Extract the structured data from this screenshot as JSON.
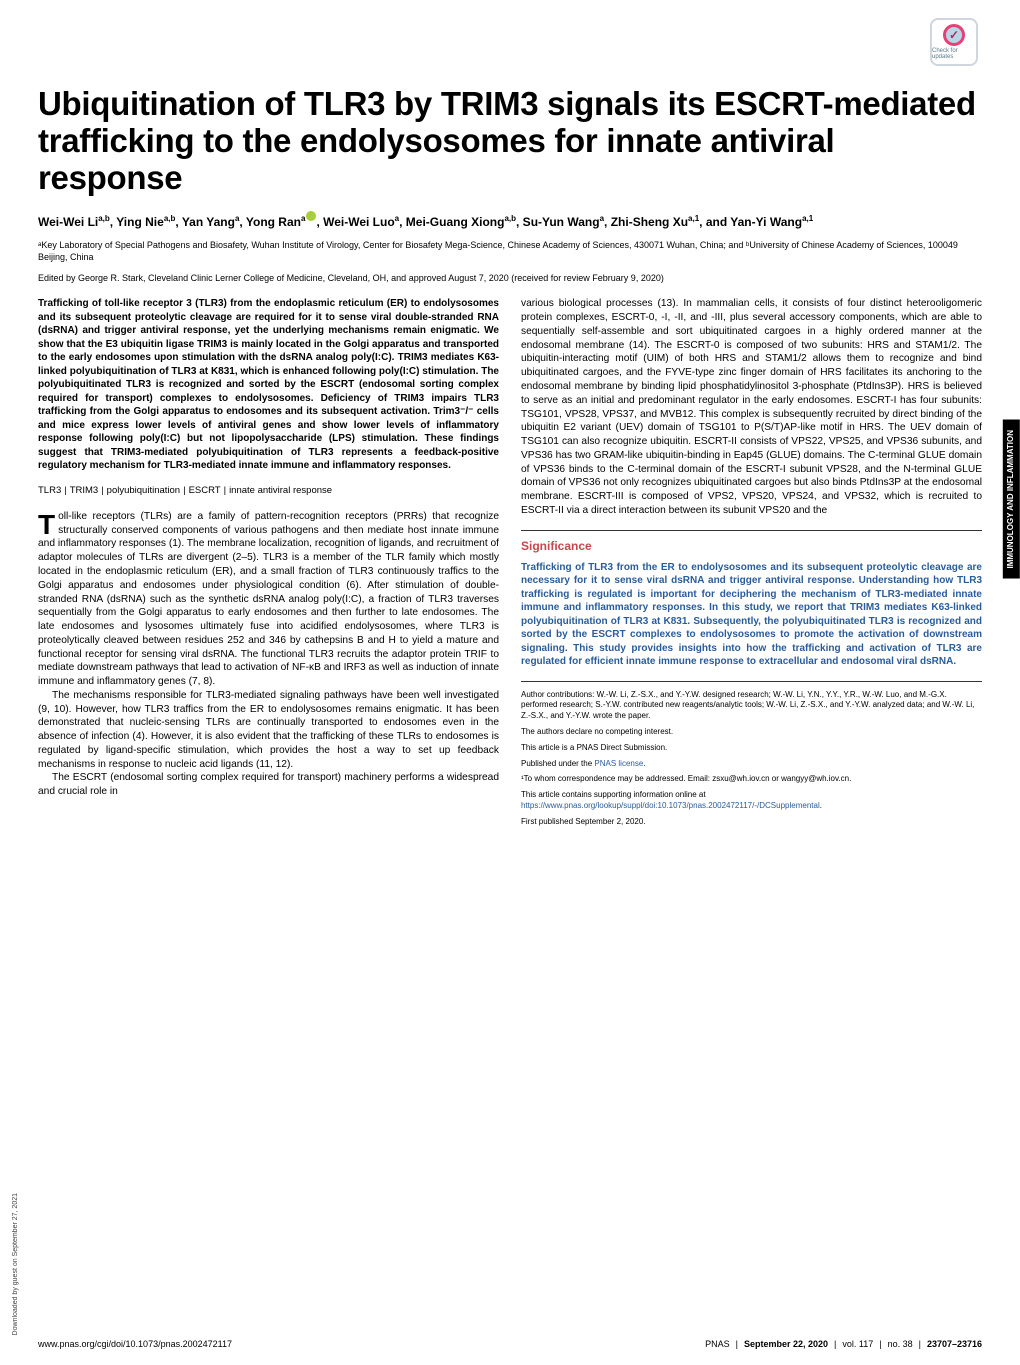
{
  "badge": {
    "label": "Check for updates"
  },
  "title": "Ubiquitination of TLR3 by TRIM3 signals its ESCRT-mediated trafficking to the endolysosomes for innate antiviral response",
  "authors_html": "Wei-Wei Li<sup>a,b</sup>, Ying Nie<sup>a,b</sup>, Yan Yang<sup>a</sup>, Yong Ran<sup>a</sup>",
  "authors_html2": ", Wei-Wei Luo<sup>a</sup>, Mei-Guang Xiong<sup>a,b</sup>, Su-Yun Wang<sup>a</sup>, Zhi-Sheng Xu<sup>a,1</sup>, and Yan-Yi Wang<sup>a,1</sup>",
  "affiliations": "ᵃKey Laboratory of Special Pathogens and Biosafety, Wuhan Institute of Virology, Center for Biosafety Mega-Science, Chinese Academy of Sciences, 430071 Wuhan, China; and ᵇUniversity of Chinese Academy of Sciences, 100049 Beijing, China",
  "edited": "Edited by George R. Stark, Cleveland Clinic Lerner College of Medicine, Cleveland, OH, and approved August 7, 2020 (received for review February 9, 2020)",
  "abstract": "Trafficking of toll-like receptor 3 (TLR3) from the endoplasmic reticulum (ER) to endolysosomes and its subsequent proteolytic cleavage are required for it to sense viral double-stranded RNA (dsRNA) and trigger antiviral response, yet the underlying mechanisms remain enigmatic. We show that the E3 ubiquitin ligase TRIM3 is mainly located in the Golgi apparatus and transported to the early endosomes upon stimulation with the dsRNA analog poly(I:C). TRIM3 mediates K63-linked polyubiquitination of TLR3 at K831, which is enhanced following poly(I:C) stimulation. The polyubiquitinated TLR3 is recognized and sorted by the ESCRT (endosomal sorting complex required for transport) complexes to endolysosomes. Deficiency of TRIM3 impairs TLR3 trafficking from the Golgi apparatus to endosomes and its subsequent activation. Trim3⁻/⁻ cells and mice express lower levels of antiviral genes and show lower levels of inflammatory response following poly(I:C) but not lipopolysaccharide (LPS) stimulation. These findings suggest that TRIM3-mediated polyubiquitination of TLR3 represents a feedback-positive regulatory mechanism for TLR3-mediated innate immune and inflammatory responses.",
  "keywords": [
    "TLR3",
    "TRIM3",
    "polyubiquitination",
    "ESCRT",
    "innate antiviral response"
  ],
  "body_left_p1": "oll-like receptors (TLRs) are a family of pattern-recognition receptors (PRRs) that recognize structurally conserved components of various pathogens and then mediate host innate immune and inflammatory responses (1). The membrane localization, recognition of ligands, and recruitment of adaptor molecules of TLRs are divergent (2–5). TLR3 is a member of the TLR family which mostly located in the endoplasmic reticulum (ER), and a small fraction of TLR3 continuously traffics to the Golgi apparatus and endosomes under physiological condition (6). After stimulation of double-stranded RNA (dsRNA) such as the synthetic dsRNA analog poly(I:C), a fraction of TLR3 traverses sequentially from the Golgi apparatus to early endosomes and then further to late endosomes. The late endosomes and lysosomes ultimately fuse into acidified endolysosomes, where TLR3 is proteolytically cleaved between residues 252 and 346 by cathepsins B and H to yield a mature and functional receptor for sensing viral dsRNA. The functional TLR3 recruits the adaptor protein TRIF to mediate downstream pathways that lead to activation of NF-κB and IRF3 as well as induction of innate immune and inflammatory genes (7, 8).",
  "body_left_p2": "The mechanisms responsible for TLR3-mediated signaling pathways have been well investigated (9, 10). However, how TLR3 traffics from the ER to endolysosomes remains enigmatic. It has been demonstrated that nucleic-sensing TLRs are continually transported to endosomes even in the absence of infection (4). However, it is also evident that the trafficking of these TLRs to endosomes is regulated by ligand-specific stimulation, which provides the host a way to set up feedback mechanisms in response to nucleic acid ligands (11, 12).",
  "body_left_p3": "The ESCRT (endosomal sorting complex required for transport) machinery performs a widespread and crucial role in",
  "body_right_p1": "various biological processes (13). In mammalian cells, it consists of four distinct heterooligomeric protein complexes, ESCRT-0, -I, -II, and -III, plus several accessory components, which are able to sequentially self-assemble and sort ubiquitinated cargoes in a highly ordered manner at the endosomal membrane (14). The ESCRT-0 is composed of two subunits: HRS and STAM1/2. The ubiquitin-interacting motif (UIM) of both HRS and STAM1/2 allows them to recognize and bind ubiquitinated cargoes, and the FYVE-type zinc finger domain of HRS facilitates its anchoring to the endosomal membrane by binding lipid phosphatidylinositol 3-phosphate (PtdIns3P). HRS is believed to serve as an initial and predominant regulator in the early endosomes. ESCRT-I has four subunits: TSG101, VPS28, VPS37, and MVB12. This complex is subsequently recruited by direct binding of the ubiquitin E2 variant (UEV) domain of TSG101 to P(S/T)AP-like motif in HRS. The UEV domain of TSG101 can also recognize ubiquitin. ESCRT-II consists of VPS22, VPS25, and VPS36 subunits, and VPS36 has two GRAM-like ubiquitin-binding in Eap45 (GLUE) domains. The C-terminal GLUE domain of VPS36 binds to the C-terminal domain of the ESCRT-I subunit VPS28, and the N-terminal GLUE domain of VPS36 not only recognizes ubiquitinated cargoes but also binds PtdIns3P at the endosomal membrane. ESCRT-III is composed of VPS2, VPS20, VPS24, and VPS32, which is recruited to ESCRT-II via a direct interaction between its subunit VPS20 and the",
  "significance_heading": "Significance",
  "significance": "Trafficking of TLR3 from the ER to endolysosomes and its subsequent proteolytic cleavage are necessary for it to sense viral dsRNA and trigger antiviral response. Understanding how TLR3 trafficking is regulated is important for deciphering the mechanism of TLR3-mediated innate immune and inflammatory responses. In this study, we report that TRIM3 mediates K63-linked polyubiquitination of TLR3 at K831. Subsequently, the polyubiquitinated TLR3 is recognized and sorted by the ESCRT complexes to endolysosomes to promote the activation of downstream signaling. This study provides insights into how the trafficking and activation of TLR3 are regulated for efficient innate immune response to extracellular and endosomal viral dsRNA.",
  "meta": {
    "contributions": "Author contributions: W.-W. Li, Z.-S.X., and Y.-Y.W. designed research; W.-W. Li, Y.N., Y.Y., Y.R., W.-W. Luo, and M.-G.X. performed research; S.-Y.W. contributed new reagents/analytic tools; W.-W. Li, Z.-S.X., and Y.-Y.W. analyzed data; and W.-W. Li, Z.-S.X., and Y.-Y.W. wrote the paper.",
    "competing": "The authors declare no competing interest.",
    "submission": "This article is a PNAS Direct Submission.",
    "license_prefix": "Published under the ",
    "license_link": "PNAS license",
    "license_suffix": ".",
    "correspondence": "¹To whom correspondence may be addressed. Email: zsxu@wh.iov.cn or wangyy@wh.iov.cn.",
    "suppl_prefix": "This article contains supporting information online at ",
    "suppl_link": "https://www.pnas.org/lookup/suppl/doi:10.1073/pnas.2002472117/-/DCSupplemental",
    "suppl_suffix": ".",
    "first_pub": "First published September 2, 2020."
  },
  "side_tab": "IMMUNOLOGY AND INFLAMMATION",
  "download_note": "Downloaded by guest on September 27, 2021",
  "footer": {
    "doi": "www.pnas.org/cgi/doi/10.1073/pnas.2002472117",
    "journal": "PNAS",
    "date": "September 22, 2020",
    "vol": "vol. 117",
    "no": "no. 38",
    "pages": "23707–23716"
  },
  "colors": {
    "sig_heading": "#c4484d",
    "sig_text": "#2a5c9a",
    "link": "#2a5c9a",
    "tab_bg": "#000000",
    "tab_fg": "#ffffff"
  }
}
